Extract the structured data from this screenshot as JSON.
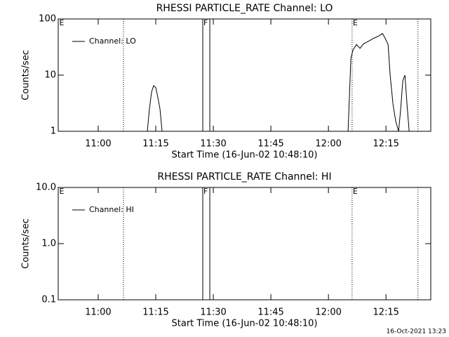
{
  "chart_data": [
    {
      "type": "line",
      "title": "RHESSI PARTICLE_RATE Channel: LO",
      "xlabel": "Start Time (16-Jun-02 10:48:10)",
      "ylabel": "Counts/sec",
      "xlim": [
        "10:49:35",
        "12:26:40"
      ],
      "xticks": [
        "11:00",
        "11:15",
        "11:30",
        "11:45",
        "12:00",
        "12:15"
      ],
      "ylim": [
        1,
        100
      ],
      "yticks": [
        1,
        10,
        100
      ],
      "log_y": true,
      "legend": "top-left",
      "series": [
        {
          "name": "Channel: LO",
          "color": "#000000",
          "x": [
            "11:12:48",
            "11:13:21",
            "11:13:54",
            "11:14:27",
            "11:15:00",
            "11:15:33",
            "11:16:06",
            "11:16:39",
            "11:18:18",
            "12:05:07",
            "12:05:51",
            "12:06:24",
            "12:07:19",
            "12:08:14",
            "12:09:08",
            "12:10:25",
            "12:11:42",
            "12:13:10",
            "12:14:05",
            "12:14:49",
            "12:15:33",
            "12:16:05",
            "12:16:50",
            "12:17:33",
            "12:18:17",
            "12:18:50",
            "12:19:23",
            "12:19:56",
            "12:20:29",
            "12:21:02"
          ],
          "values": [
            1,
            2.5,
            5,
            6.5,
            6,
            4,
            2.5,
            1,
            null,
            1,
            20,
            28,
            35,
            30,
            36,
            40,
            45,
            50,
            55,
            45,
            35,
            10,
            3,
            1.5,
            1,
            2.5,
            8,
            10,
            3,
            1
          ]
        }
      ],
      "events": [
        {
          "x": "10:49:40",
          "label": "E"
        },
        {
          "x": "11:27:15",
          "label": "F"
        },
        {
          "x": "12:06:10",
          "label": "E"
        }
      ],
      "dotted_lines": [
        "11:06:35",
        "12:06:10",
        "12:23:20"
      ],
      "solid_lines": [
        "11:27:15",
        "11:29:05"
      ]
    },
    {
      "type": "line",
      "title": "RHESSI PARTICLE_RATE Channel: HI",
      "xlabel": "Start Time (16-Jun-02 10:48:10)",
      "ylabel": "Counts/sec",
      "xlim": [
        "10:49:35",
        "12:26:40"
      ],
      "xticks": [
        "11:00",
        "11:15",
        "11:30",
        "11:45",
        "12:00",
        "12:15"
      ],
      "ylim": [
        0.1,
        10
      ],
      "yticks": [
        0.1,
        {
          "value": 1,
          "label": "1.0"
        },
        {
          "value": 10,
          "label": "10.0"
        }
      ],
      "log_y": true,
      "legend": "top-left",
      "series": [
        {
          "name": "Channel: HI",
          "color": "#000000",
          "x": [],
          "values": []
        }
      ],
      "events": [
        {
          "x": "10:49:40",
          "label": "E"
        },
        {
          "x": "11:27:15",
          "label": "F"
        },
        {
          "x": "12:06:10",
          "label": "E"
        }
      ],
      "dotted_lines": [
        "11:06:35",
        "12:06:10",
        "12:23:20"
      ],
      "solid_lines": [
        "11:27:15",
        "11:29:05"
      ]
    }
  ],
  "footer": "16-Oct-2021 13:23"
}
